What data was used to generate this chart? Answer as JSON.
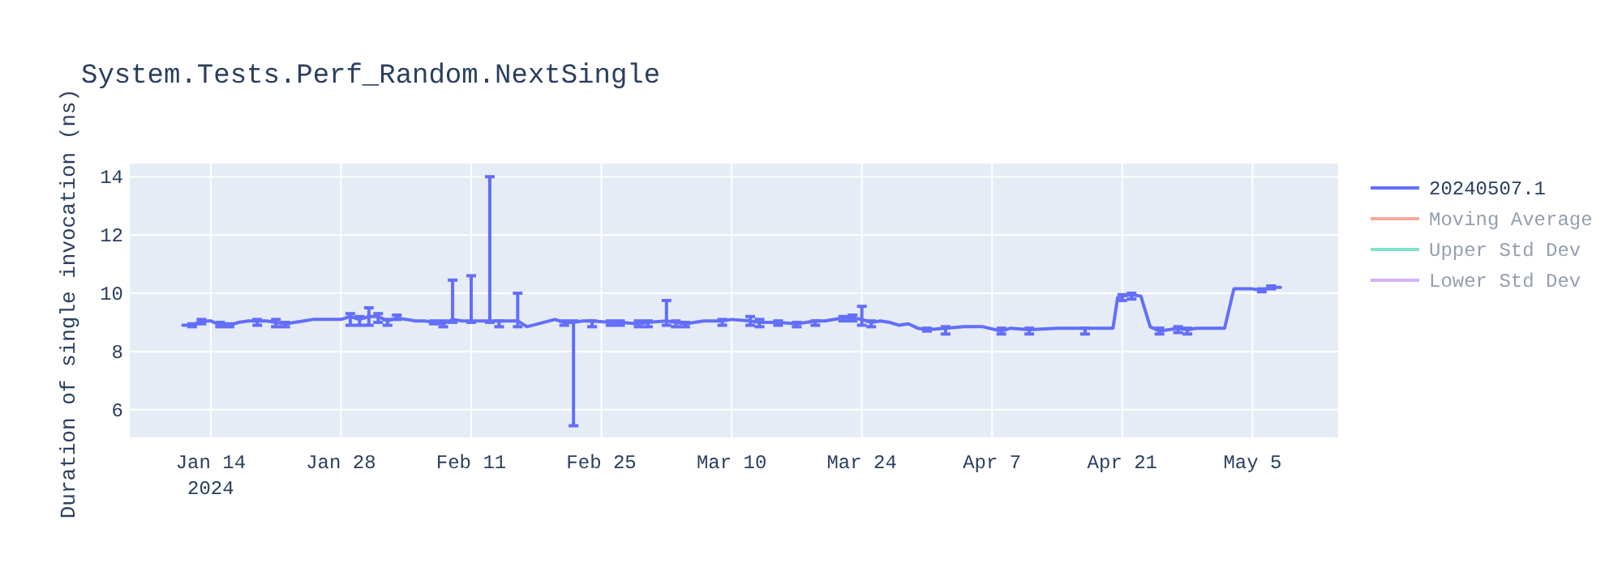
{
  "chart_data": {
    "type": "line",
    "title": "System.Tests.Perf_Random.NextSingle",
    "ylabel": "Duration of single invocation (ns)",
    "x": [
      "2024-01-11",
      "2024-01-12",
      "2024-01-13",
      "2024-01-14",
      "2024-01-15",
      "2024-01-16",
      "2024-01-17",
      "2024-01-18",
      "2024-01-19",
      "2024-01-20",
      "2024-01-21",
      "2024-01-22",
      "2024-01-23",
      "2024-01-24",
      "2024-01-25",
      "2024-01-26",
      "2024-01-27",
      "2024-01-28",
      "2024-01-29",
      "2024-01-30",
      "2024-01-31",
      "2024-02-01",
      "2024-02-02",
      "2024-02-03",
      "2024-02-04",
      "2024-02-05",
      "2024-02-06",
      "2024-02-07",
      "2024-02-08",
      "2024-02-09",
      "2024-02-10",
      "2024-02-11",
      "2024-02-12",
      "2024-02-13",
      "2024-02-14",
      "2024-02-15",
      "2024-02-16",
      "2024-02-17",
      "2024-02-20",
      "2024-02-21",
      "2024-02-22",
      "2024-02-23",
      "2024-02-24",
      "2024-02-26",
      "2024-02-27",
      "2024-02-29",
      "2024-03-01",
      "2024-03-03",
      "2024-03-04",
      "2024-03-05",
      "2024-03-07",
      "2024-03-09",
      "2024-03-10",
      "2024-03-12",
      "2024-03-13",
      "2024-03-15",
      "2024-03-17",
      "2024-03-19",
      "2024-03-20",
      "2024-03-22",
      "2024-03-23",
      "2024-03-24",
      "2024-03-25",
      "2024-03-26",
      "2024-03-27",
      "2024-03-28",
      "2024-03-29",
      "2024-03-30",
      "2024-03-31",
      "2024-04-02",
      "2024-04-04",
      "2024-04-05",
      "2024-04-06",
      "2024-04-08",
      "2024-04-09",
      "2024-04-11",
      "2024-04-14",
      "2024-04-17",
      "2024-04-20",
      "2024-04-20T12:00",
      "2024-04-21",
      "2024-04-22",
      "2024-04-23",
      "2024-04-24",
      "2024-04-25",
      "2024-04-27",
      "2024-04-28",
      "2024-04-29",
      "2024-05-02",
      "2024-05-03",
      "2024-05-04",
      "2024-05-05",
      "2024-05-06",
      "2024-05-07",
      "2024-05-08"
    ],
    "series": [
      {
        "name": "20240507.1",
        "color": "#636efa",
        "values": [
          8.9,
          8.9,
          9.05,
          9.05,
          8.9,
          8.9,
          9.0,
          9.05,
          9.05,
          9.05,
          9.0,
          8.95,
          9.0,
          9.05,
          9.1,
          9.1,
          9.1,
          9.1,
          9.2,
          9.1,
          9.2,
          9.2,
          9.05,
          9.15,
          9.1,
          9.05,
          9.05,
          9.0,
          8.95,
          9.1,
          9.05,
          9.05,
          9.05,
          9.05,
          9.05,
          9.05,
          9.05,
          8.85,
          9.1,
          9.0,
          9.0,
          9.05,
          9.05,
          9.0,
          9.0,
          8.95,
          9.0,
          9.05,
          9.0,
          8.95,
          9.05,
          9.05,
          9.1,
          9.05,
          9.0,
          9.0,
          8.95,
          9.05,
          9.05,
          9.15,
          9.15,
          9.1,
          9.0,
          9.05,
          9.0,
          8.9,
          8.95,
          8.8,
          8.75,
          8.8,
          8.85,
          8.85,
          8.85,
          8.7,
          8.8,
          8.75,
          8.8,
          8.8,
          8.8,
          9.85,
          9.9,
          9.95,
          9.9,
          8.85,
          8.7,
          8.8,
          8.75,
          8.8,
          8.8,
          10.15,
          10.15,
          10.15,
          10.1,
          10.2,
          10.2
        ],
        "errors": [
          null,
          [
            8.85,
            8.95
          ],
          [
            8.95,
            9.1
          ],
          null,
          [
            8.85,
            9.0
          ],
          [
            8.85,
            8.95
          ],
          null,
          null,
          [
            8.9,
            9.1
          ],
          null,
          [
            8.85,
            9.1
          ],
          [
            8.85,
            9.0
          ],
          null,
          null,
          null,
          null,
          null,
          null,
          [
            8.9,
            9.3
          ],
          [
            8.9,
            9.2
          ],
          [
            8.9,
            9.5
          ],
          [
            9.0,
            9.3
          ],
          [
            8.9,
            9.1
          ],
          [
            9.1,
            9.25
          ],
          null,
          null,
          null,
          [
            8.95,
            9.05
          ],
          [
            8.85,
            9.05
          ],
          [
            9.0,
            10.45
          ],
          null,
          [
            9.0,
            10.6
          ],
          null,
          [
            9.0,
            14.0
          ],
          [
            8.85,
            9.05
          ],
          null,
          [
            8.85,
            10.0
          ],
          null,
          null,
          [
            8.9,
            9.05
          ],
          [
            5.45,
            9.05
          ],
          null,
          [
            8.85,
            9.05
          ],
          [
            8.9,
            9.05
          ],
          [
            8.9,
            9.05
          ],
          [
            8.85,
            9.05
          ],
          [
            8.85,
            9.05
          ],
          [
            8.9,
            9.75
          ],
          [
            8.85,
            9.05
          ],
          [
            8.85,
            9.0
          ],
          null,
          [
            8.9,
            9.1
          ],
          null,
          [
            8.9,
            9.2
          ],
          [
            8.85,
            9.1
          ],
          [
            8.9,
            9.05
          ],
          [
            8.85,
            9.0
          ],
          [
            8.9,
            9.05
          ],
          null,
          [
            9.05,
            9.2
          ],
          [
            9.05,
            9.25
          ],
          [
            8.9,
            9.55
          ],
          [
            8.85,
            9.05
          ],
          null,
          null,
          null,
          null,
          null,
          [
            8.7,
            8.8
          ],
          [
            8.6,
            8.85
          ],
          null,
          null,
          null,
          [
            8.6,
            8.8
          ],
          null,
          [
            8.6,
            8.8
          ],
          null,
          [
            8.6,
            8.8
          ],
          null,
          null,
          [
            9.75,
            9.95
          ],
          [
            9.8,
            10.0
          ],
          null,
          null,
          [
            8.6,
            8.8
          ],
          [
            8.65,
            8.85
          ],
          [
            8.6,
            8.8
          ],
          null,
          null,
          null,
          null,
          null,
          [
            10.05,
            10.15
          ],
          [
            10.15,
            10.25
          ],
          null
        ]
      },
      {
        "name": "Moving Average",
        "color": "#ef553b",
        "values": [
          null,
          null,
          null,
          null,
          null,
          null,
          null,
          null,
          null,
          null,
          null,
          null,
          null,
          null,
          null,
          null,
          null,
          null,
          null,
          null,
          null,
          null,
          null,
          null,
          null,
          null,
          null,
          null,
          null,
          null,
          null,
          null,
          null,
          null,
          null,
          null,
          null,
          null,
          null,
          null,
          null,
          null,
          null,
          null,
          null,
          null,
          null,
          null,
          null,
          null,
          null,
          null,
          null,
          null,
          null,
          null,
          null,
          null,
          null,
          null,
          null,
          null,
          null,
          null,
          null,
          null,
          null,
          null,
          null,
          null,
          null,
          null,
          null,
          null,
          null,
          null,
          null,
          null,
          null,
          null,
          null,
          null,
          null,
          null,
          null,
          null,
          null,
          null,
          null,
          null,
          null,
          null,
          null,
          null,
          null
        ]
      },
      {
        "name": "Upper Std Dev",
        "color": "#00cc96",
        "values": [
          null,
          null,
          null,
          null,
          null,
          null,
          null,
          null,
          null,
          null,
          null,
          null,
          null,
          null,
          null,
          null,
          null,
          null,
          null,
          null,
          null,
          null,
          null,
          null,
          null,
          null,
          null,
          null,
          null,
          null,
          null,
          null,
          null,
          null,
          null,
          null,
          null,
          null,
          null,
          null,
          null,
          null,
          null,
          null,
          null,
          null,
          null,
          null,
          null,
          null,
          null,
          null,
          null,
          null,
          null,
          null,
          null,
          null,
          null,
          null,
          null,
          null,
          null,
          null,
          null,
          null,
          null,
          null,
          null,
          null,
          null,
          null,
          null,
          null,
          null,
          null,
          null,
          null,
          null,
          null,
          null,
          null,
          null,
          null,
          null,
          null,
          null,
          null,
          null,
          null,
          null,
          null,
          null,
          null,
          null
        ]
      },
      {
        "name": "Lower Std Dev",
        "color": "#ab63fa",
        "values": [
          null,
          null,
          null,
          null,
          null,
          null,
          null,
          null,
          null,
          null,
          null,
          null,
          null,
          null,
          null,
          null,
          null,
          null,
          null,
          null,
          null,
          null,
          null,
          null,
          null,
          null,
          null,
          null,
          null,
          null,
          null,
          null,
          null,
          null,
          null,
          null,
          null,
          null,
          null,
          null,
          null,
          null,
          null,
          null,
          null,
          null,
          null,
          null,
          null,
          null,
          null,
          null,
          null,
          null,
          null,
          null,
          null,
          null,
          null,
          null,
          null,
          null,
          null,
          null,
          null,
          null,
          null,
          null,
          null,
          null,
          null,
          null,
          null,
          null,
          null,
          null,
          null,
          null,
          null,
          null,
          null,
          null,
          null,
          null,
          null,
          null,
          null,
          null,
          null,
          null,
          null,
          null,
          null,
          null,
          null
        ]
      }
    ],
    "xlim": [
      "2024-01-05T07:00",
      "2024-05-14T05:00"
    ],
    "xticks": [
      {
        "value": "2024-01-14",
        "label": "Jan 14\n2024"
      },
      {
        "value": "2024-01-28",
        "label": "Jan 28"
      },
      {
        "value": "2024-02-11",
        "label": "Feb 11"
      },
      {
        "value": "2024-02-25",
        "label": "Feb 25"
      },
      {
        "value": "2024-03-10",
        "label": "Mar 10"
      },
      {
        "value": "2024-03-24",
        "label": "Mar 24"
      },
      {
        "value": "2024-04-07",
        "label": "Apr 7"
      },
      {
        "value": "2024-04-21",
        "label": "Apr 21"
      },
      {
        "value": "2024-05-05",
        "label": "May 5"
      }
    ],
    "ylim": [
      5.05,
      14.45
    ],
    "yticks": [
      6,
      8,
      10,
      12,
      14
    ],
    "grid": true,
    "legend": "top right",
    "marker": "none",
    "line_style": "solid"
  }
}
